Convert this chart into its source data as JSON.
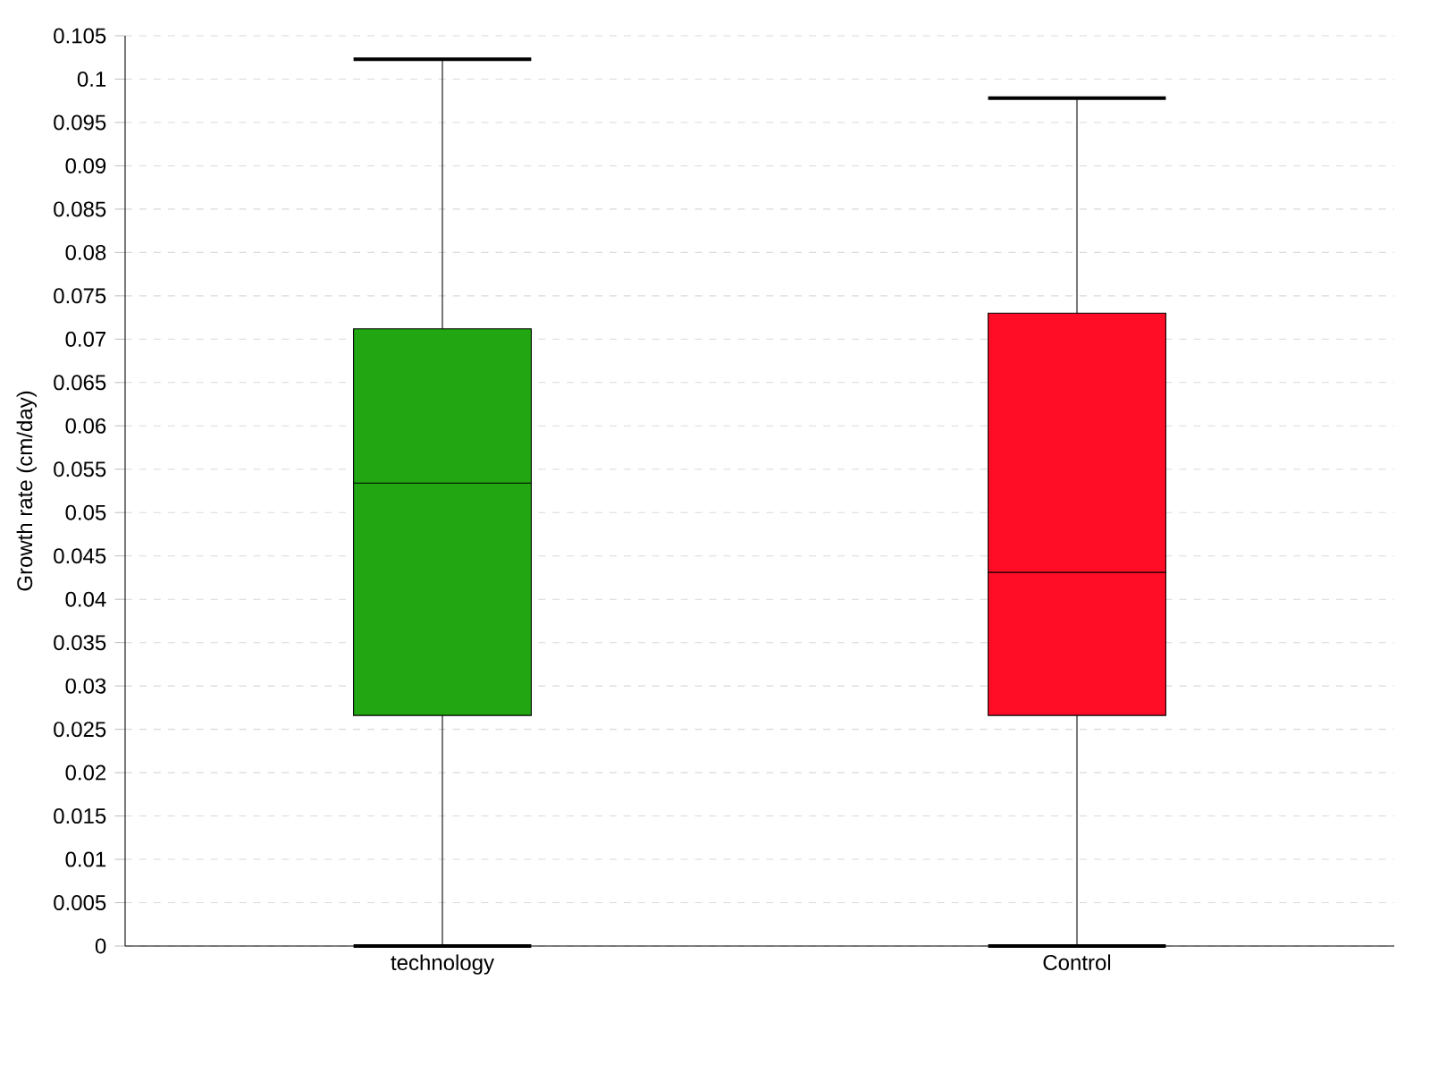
{
  "chart_data": {
    "type": "box",
    "ylabel": "Growth rate (cm/day)",
    "categories": [
      "technology",
      "Control"
    ],
    "boxes": [
      {
        "low": 0,
        "q1": 0.0266,
        "median": 0.0534,
        "q3": 0.0712,
        "high": 0.1023
      },
      {
        "low": 0,
        "q1": 0.0266,
        "median": 0.0431,
        "q3": 0.073,
        "high": 0.0978
      }
    ],
    "colors": [
      "#22a712",
      "#ff0c26"
    ],
    "ylim": [
      0,
      0.105
    ],
    "yticks": [
      0,
      0.005,
      0.01,
      0.015,
      0.02,
      0.025,
      0.03,
      0.035,
      0.04,
      0.045,
      0.05,
      0.055,
      0.06,
      0.065,
      0.07,
      0.075,
      0.08,
      0.085,
      0.09,
      0.095,
      0.1,
      0.105
    ],
    "grid": "y"
  }
}
